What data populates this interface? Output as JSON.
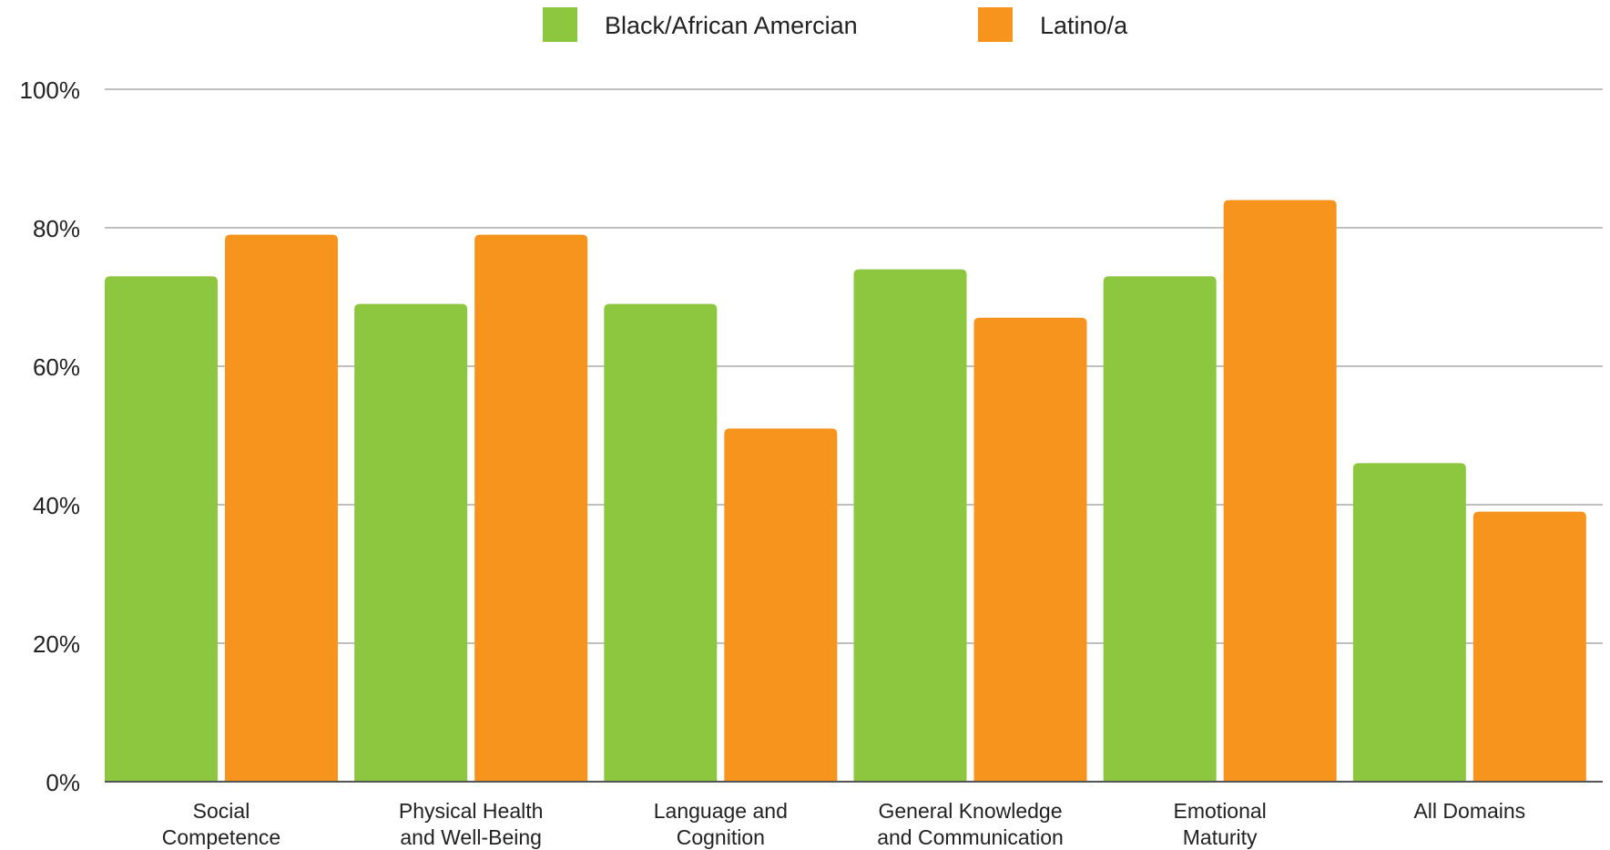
{
  "chart_data": {
    "type": "bar",
    "categories": [
      [
        "Social",
        "Competence"
      ],
      [
        "Physical Health",
        "and Well-Being"
      ],
      [
        "Language and",
        "Cognition"
      ],
      [
        "General Knowledge",
        "and Communication"
      ],
      [
        "Emotional",
        "Maturity"
      ],
      [
        "All Domains"
      ]
    ],
    "series": [
      {
        "name": "Black/African Amercian",
        "color": "#8dc63f",
        "values": [
          73,
          69,
          69,
          74,
          73,
          46
        ]
      },
      {
        "name": "Latino/a",
        "color": "#f7941d",
        "values": [
          79,
          79,
          51,
          67,
          84,
          39
        ]
      }
    ],
    "y_ticks": [
      "0%",
      "20%",
      "40%",
      "60%",
      "80%",
      "100%"
    ],
    "ylim": [
      0,
      100
    ],
    "grid": true,
    "legend_position": "top-center"
  }
}
